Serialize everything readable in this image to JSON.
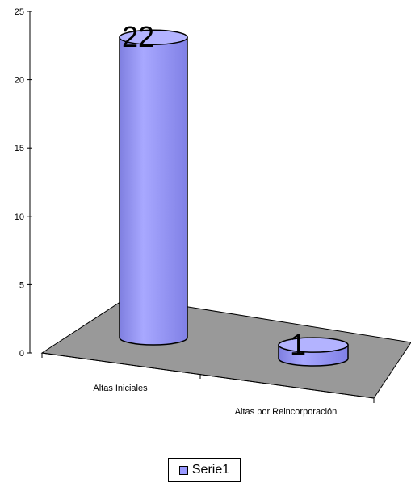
{
  "chart_data": {
    "type": "bar",
    "style": "3d-cylinder",
    "categories": [
      "Altas Iniciales",
      "Altas por Reincorporación"
    ],
    "series": [
      {
        "name": "Serie1",
        "values": [
          22,
          1
        ]
      }
    ],
    "data_labels": [
      "22",
      "1"
    ],
    "ylim": [
      0,
      25
    ],
    "y_ticks": [
      "0",
      "5",
      "10",
      "15",
      "20",
      "25"
    ],
    "legend": {
      "label": "Serie1",
      "position": "bottom"
    },
    "colors": {
      "bar": "#9999ff",
      "floor": "#999999"
    }
  }
}
